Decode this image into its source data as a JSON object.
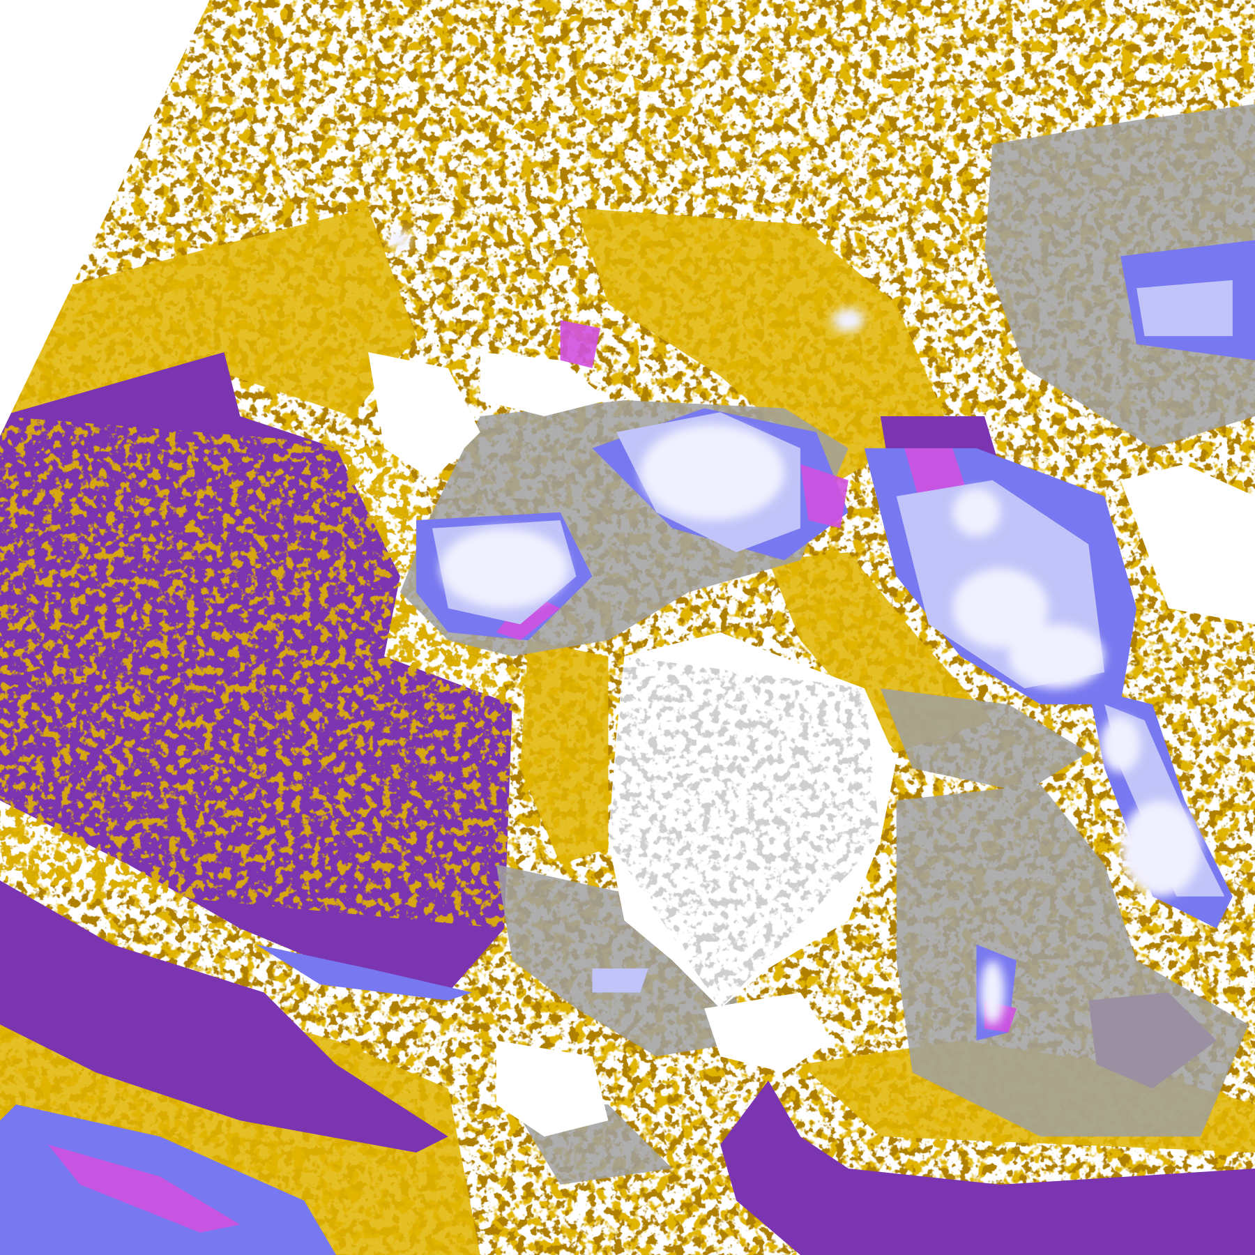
{
  "image": {
    "kind": "satellite cloud-type classification",
    "colors": {
      "background": "#ffffff",
      "gold": "#e0b400",
      "dark_gold": "#b08000",
      "purple": "#7b35b0",
      "gray": "#a0a0a0",
      "light_gray": "#c8c8c8",
      "pale_blue": "#c0c4f8",
      "periwinkle": "#7878f0",
      "magenta": "#d050e0",
      "near_white": "#f0f0ff"
    }
  }
}
